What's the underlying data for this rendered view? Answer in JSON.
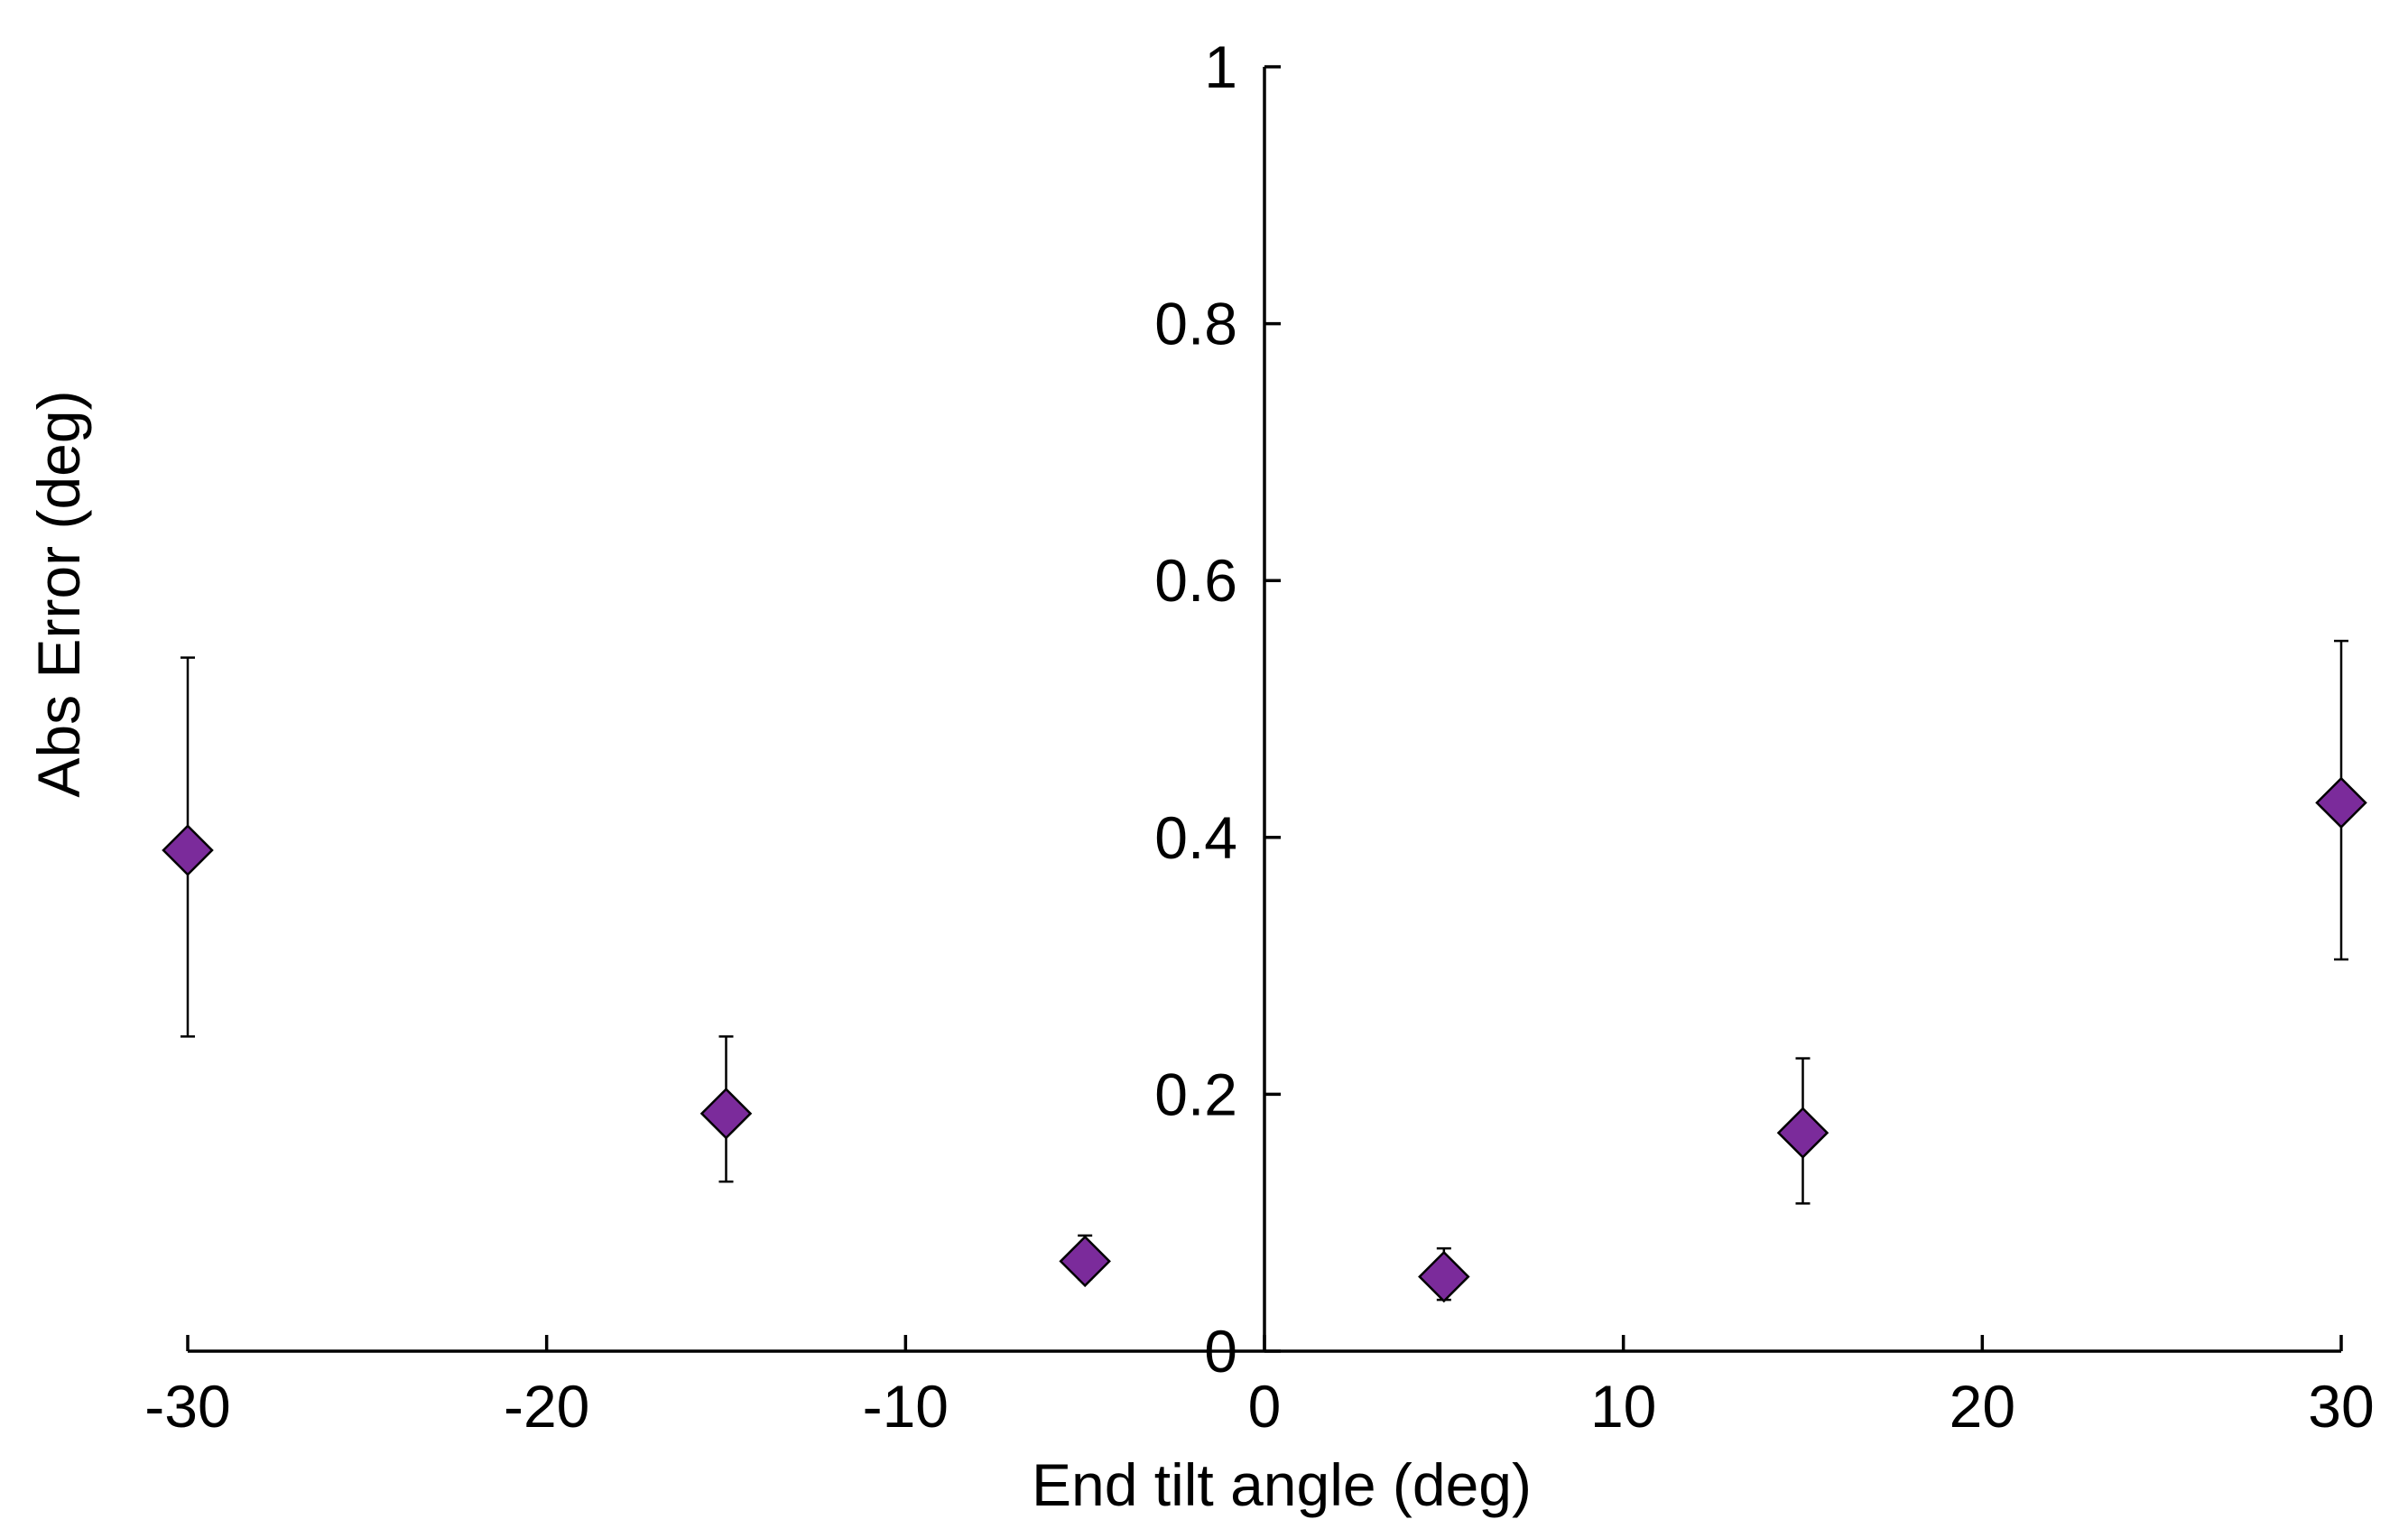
{
  "chart_data": {
    "type": "scatter",
    "title": "",
    "xlabel": "End tilt angle (deg)",
    "ylabel": "Abs Error (deg)",
    "xlim": [
      -30,
      30
    ],
    "ylim": [
      0,
      1
    ],
    "xticks": [
      -30,
      -20,
      -10,
      0,
      10,
      20,
      30
    ],
    "xtick_labels": [
      "-30",
      "-20",
      "-10",
      "0",
      "10",
      "20",
      "30"
    ],
    "yticks": [
      0,
      0.2,
      0.4,
      0.6,
      0.8,
      1
    ],
    "ytick_labels": [
      "0",
      "0.2",
      "0.4",
      "0.6",
      "0.8",
      "1"
    ],
    "grid": false,
    "marker_color": "#7b2b9b",
    "series": [
      {
        "name": "Abs Error",
        "x": [
          -30,
          -15,
          -5,
          5,
          15,
          30
        ],
        "y": [
          0.39,
          0.185,
          0.07,
          0.058,
          0.17,
          0.427
        ],
        "err_low": [
          0.245,
          0.132,
          0.056,
          0.04,
          0.115,
          0.305
        ],
        "err_high": [
          0.54,
          0.245,
          0.09,
          0.08,
          0.228,
          0.553
        ]
      }
    ]
  }
}
